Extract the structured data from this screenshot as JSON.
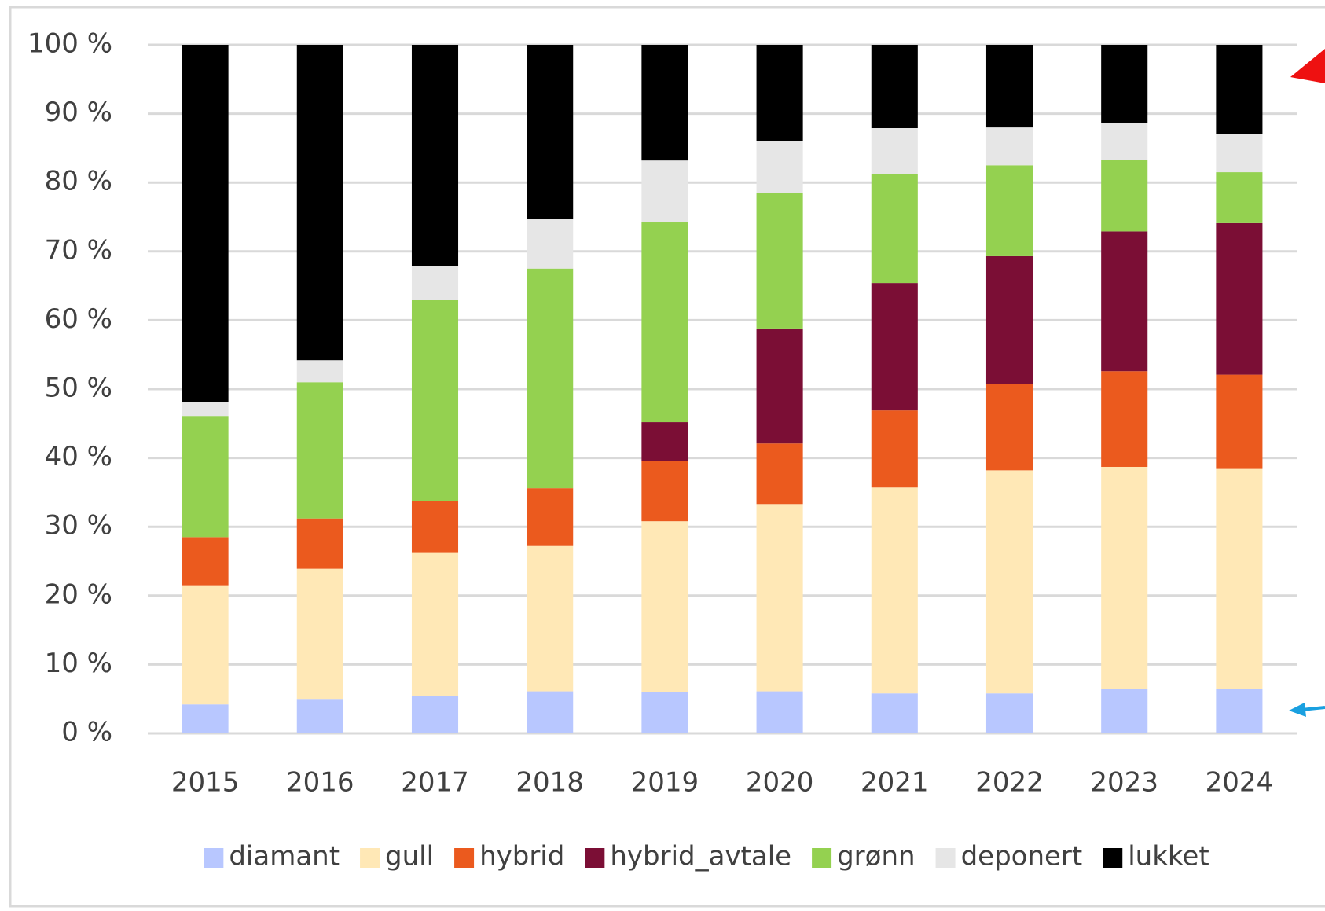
{
  "chart_data": {
    "type": "stacked_bar",
    "categories": [
      "2015",
      "2016",
      "2017",
      "2018",
      "2019",
      "2020",
      "2021",
      "2022",
      "2023",
      "2024"
    ],
    "series": [
      {
        "name": "diamant",
        "color": "#b8c7ff",
        "values": [
          4.2,
          5.0,
          5.4,
          6.1,
          6.0,
          6.1,
          5.8,
          5.8,
          6.4,
          6.4
        ]
      },
      {
        "name": "gull",
        "color": "#ffe8b6",
        "values": [
          17.3,
          18.9,
          20.9,
          21.1,
          24.8,
          27.2,
          29.9,
          32.4,
          32.3,
          32.0
        ]
      },
      {
        "name": "hybrid",
        "color": "#eb5a1e",
        "values": [
          7.0,
          7.3,
          7.4,
          8.4,
          8.7,
          8.8,
          11.2,
          12.5,
          13.9,
          13.7
        ]
      },
      {
        "name": "hybrid_avtale",
        "color": "#7b0e35",
        "values": [
          0,
          0,
          0,
          0,
          5.7,
          16.7,
          18.5,
          18.6,
          20.3,
          22.0
        ]
      },
      {
        "name": "grønn",
        "color": "#94d150",
        "values": [
          17.6,
          19.8,
          29.2,
          31.9,
          29.0,
          19.7,
          15.8,
          13.2,
          10.4,
          7.4
        ]
      },
      {
        "name": "deponert",
        "color": "#e6e6e6",
        "values": [
          2.0,
          3.2,
          5.0,
          7.2,
          9.0,
          7.5,
          6.7,
          5.5,
          5.4,
          5.5
        ]
      },
      {
        "name": "lukket",
        "color": "#000000",
        "values": [
          51.9,
          45.8,
          32.1,
          25.3,
          16.8,
          14.0,
          12.1,
          12.0,
          11.3,
          13.0
        ]
      }
    ],
    "ylim": [
      0,
      100
    ],
    "yticks": [
      {
        "value": 0,
        "label": "0 %"
      },
      {
        "value": 10,
        "label": "10 %"
      },
      {
        "value": 20,
        "label": "20 %"
      },
      {
        "value": 30,
        "label": "30 %"
      },
      {
        "value": 40,
        "label": "40 %"
      },
      {
        "value": 50,
        "label": "50 %"
      },
      {
        "value": 60,
        "label": "60 %"
      },
      {
        "value": 70,
        "label": "70 %"
      },
      {
        "value": 80,
        "label": "80 %"
      },
      {
        "value": 90,
        "label": "90 %"
      },
      {
        "value": 100,
        "label": "100 %"
      }
    ],
    "grid": true,
    "legend": "bottom"
  }
}
